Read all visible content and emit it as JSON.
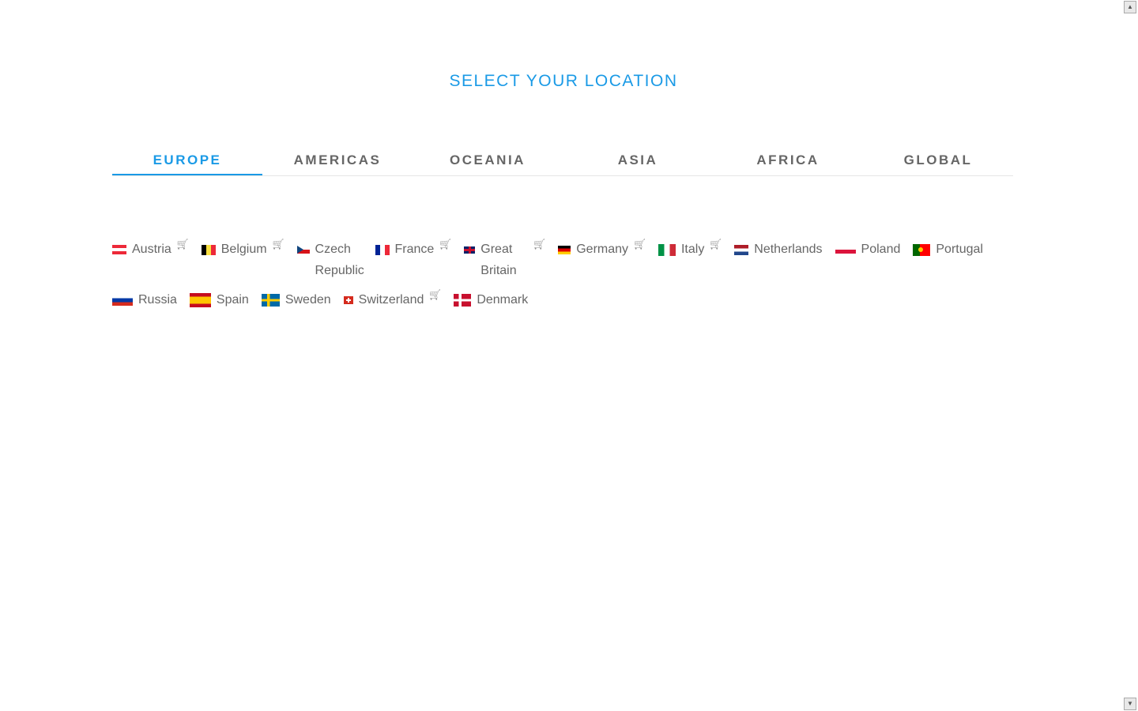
{
  "title": "SELECT YOUR LOCATION",
  "tabs": [
    {
      "label": "EUROPE",
      "active": true
    },
    {
      "label": "AMERICAS"
    },
    {
      "label": "OCEANIA"
    },
    {
      "label": "ASIA"
    },
    {
      "label": "AFRICA"
    },
    {
      "label": "GLOBAL"
    }
  ],
  "countries": [
    {
      "name": "Austria",
      "flag": [
        "#ed2939",
        "#fff",
        "#ed2939"
      ],
      "dir": "h"
    },
    {
      "name": "Belgium",
      "flag": [
        "#000",
        "#fae042",
        "#ed2939"
      ],
      "dir": "v"
    },
    {
      "name": "Czech Republic",
      "flag": [
        "#fff",
        "#d7141a"
      ],
      "dir": "cz"
    },
    {
      "name": "France",
      "flag": [
        "#002395",
        "#fff",
        "#ed2939"
      ],
      "dir": "v"
    },
    {
      "name": "Great Britain",
      "flag": [
        "#012169",
        "#fff",
        "#c8102e"
      ],
      "dir": "uk"
    },
    {
      "name": "Germany",
      "flag": [
        "#000",
        "#dd0000",
        "#ffce00"
      ],
      "dir": "h"
    },
    {
      "name": "Italy",
      "flag": [
        "#009246",
        "#fff",
        "#ce2b37"
      ],
      "dir": "v"
    },
    {
      "name": "Netherlands",
      "flag": [
        "#ae1c28",
        "#fff",
        "#21468b"
      ],
      "dir": "h"
    },
    {
      "name": "Poland",
      "flag": [
        "#fff",
        "#dc143c"
      ],
      "dir": "h"
    },
    {
      "name": "Portugal",
      "flag": [
        "#006600",
        "#ff0000"
      ],
      "dir": "pt"
    },
    {
      "name": "Russia",
      "flag": [
        "#fff",
        "#0039a6",
        "#d52b1e"
      ],
      "dir": "h"
    },
    {
      "name": "Spain",
      "flag": [
        "#c60b1e",
        "#ffc400",
        "#c60b1e"
      ],
      "dir": "es"
    },
    {
      "name": "Sweden",
      "flag": [
        "#006aa7",
        "#fecc00"
      ],
      "dir": "nordic"
    },
    {
      "name": "Switzerland",
      "flag": [
        "#d52b1e",
        "#fff"
      ],
      "dir": "ch"
    },
    {
      "name": "Denmark",
      "flag": [
        "#c8102e",
        "#fff"
      ],
      "dir": "nordic"
    }
  ],
  "cart_icon": "shopping-cart-icon"
}
